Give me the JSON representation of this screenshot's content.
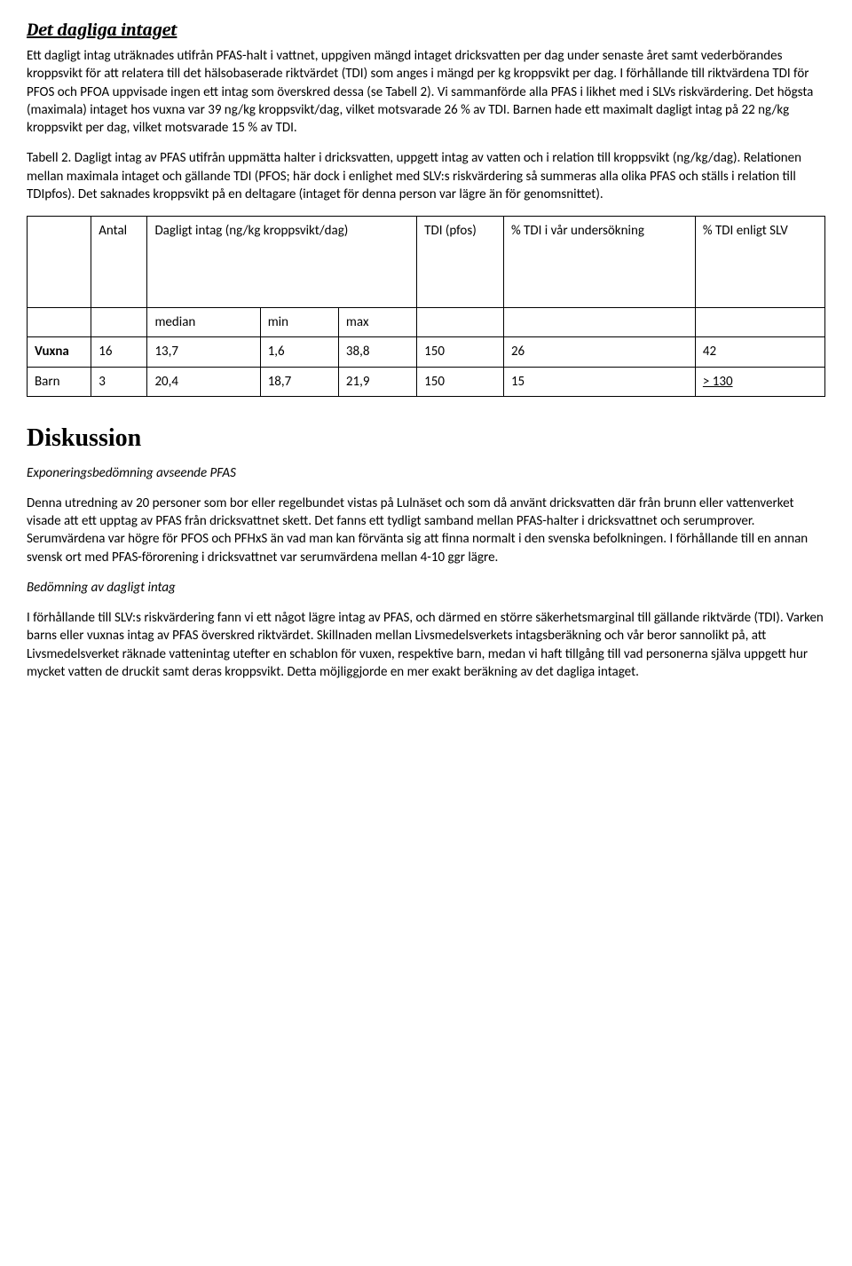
{
  "section1": {
    "heading": "Det dagliga intaget",
    "para1": "Ett dagligt intag uträknades utifrån PFAS-halt i vattnet, uppgiven mängd intaget dricksvatten per dag under senaste året samt vederbörandes kroppsvikt för att relatera till det hälsobaserade riktvärdet (TDI) som anges i mängd per kg kroppsvikt per dag. I förhållande till riktvärdena TDI för PFOS och PFOA uppvisade ingen ett intag som överskred dessa (se Tabell 2). Vi sammanförde alla PFAS i likhet med i SLVs riskvärdering. Det högsta (maximala) intaget hos vuxna var 39 ng/kg kroppsvikt/dag, vilket motsvarade 26 % av TDI. Barnen hade ett maximalt dagligt intag på 22 ng/kg kroppsvikt per dag, vilket motsvarade 15 % av TDI.",
    "caption": "Tabell 2. Dagligt intag av PFAS utifrån uppmätta halter i dricksvatten, uppgett intag av vatten och i relation till kroppsvikt (ng/kg/dag). Relationen mellan maximala intaget och gällande TDI (PFOS; här dock i enlighet med SLV:s riskvärdering så summeras alla olika PFAS och ställs i relation till TDIpfos). Det saknades kroppsvikt på en deltagare (intaget för denna person var lägre än för genomsnittet)."
  },
  "table": {
    "headers": {
      "antal": "Antal",
      "intag": "Dagligt intag (ng/kg kroppsvikt/dag)",
      "tdi": "TDI (pfos)",
      "pct_our": "% TDI i vår undersökning",
      "pct_slv": "% TDI enligt SLV",
      "median": "median",
      "min": "min",
      "max": "max"
    },
    "rows": [
      {
        "label": "Vuxna",
        "antal": "16",
        "median": "13,7",
        "min": "1,6",
        "max": "38,8",
        "tdi": "150",
        "pct_our": "26",
        "pct_slv": "42"
      },
      {
        "label": "Barn",
        "antal": "3",
        "median": "20,4",
        "min": "18,7",
        "max": "21,9",
        "tdi": "150",
        "pct_our": "15",
        "pct_slv": "> 130"
      }
    ]
  },
  "section2": {
    "heading": "Diskussion",
    "sub1": "Exponeringsbedömning avseende PFAS",
    "para2": "Denna utredning av 20 personer som bor eller regelbundet vistas på Lulnäset och som då använt dricksvatten där från brunn eller vattenverket visade att ett upptag av PFAS från dricksvattnet skett. Det fanns ett tydligt samband mellan PFAS-halter i dricksvattnet och serumprover. Serumvärdena var högre för PFOS och PFHxS än vad man kan förvänta sig att finna normalt i den svenska befolkningen. I förhållande till en annan svensk ort med PFAS-förorening i dricksvattnet var serumvärdena mellan 4-10 ggr lägre.",
    "sub2": "Bedömning av dagligt intag",
    "para3": "I förhållande till SLV:s riskvärdering fann vi ett något lägre intag av PFAS, och därmed en större säkerhetsmarginal till gällande riktvärde (TDI). Varken barns eller vuxnas intag av PFAS överskred riktvärdet. Skillnaden mellan Livsmedelsverkets intagsberäkning och vår beror sannolikt på, att Livsmedelsverket räknade vattenintag utefter en schablon för vuxen, respektive barn, medan vi haft tillgång till vad personerna själva uppgett hur mycket vatten de druckit samt deras kroppsvikt. Detta möjliggjorde en mer exakt beräkning av det dagliga intaget."
  }
}
